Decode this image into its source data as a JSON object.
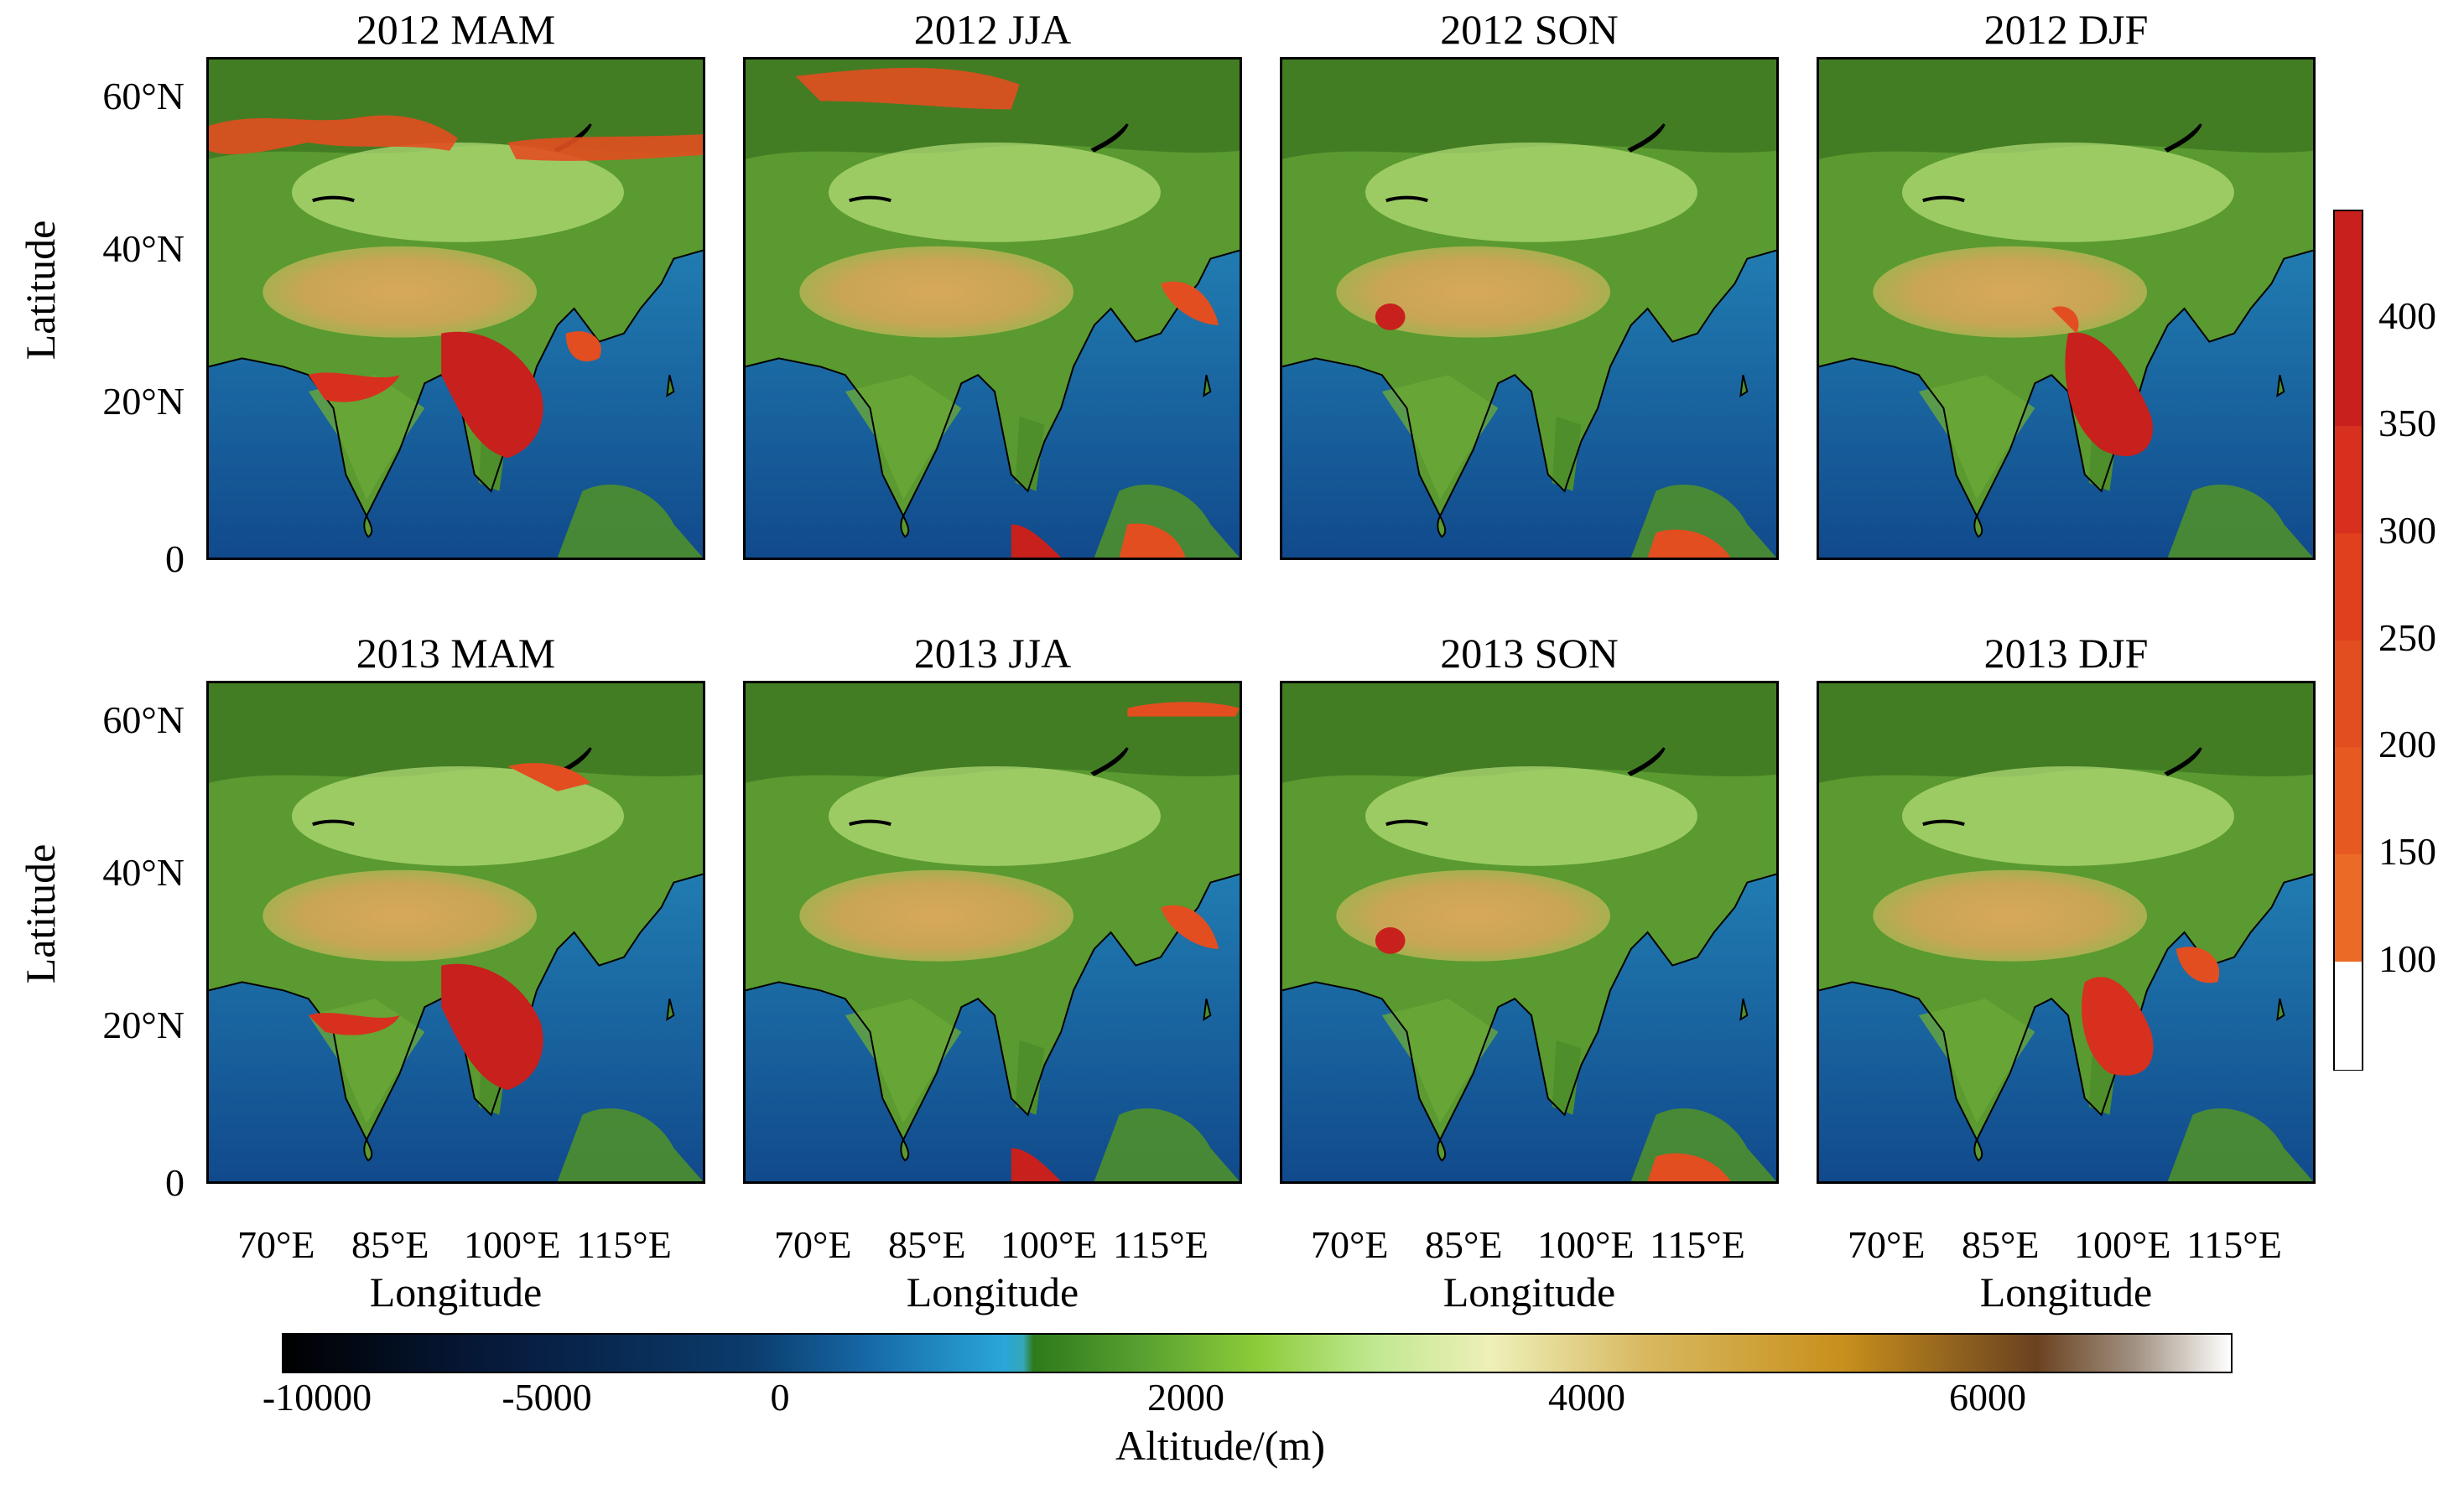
{
  "figure": {
    "panels": [
      {
        "title": "2012 MAM"
      },
      {
        "title": "2012 JJA"
      },
      {
        "title": "2012 SON"
      },
      {
        "title": "2012 DJF"
      },
      {
        "title": "2013 MAM"
      },
      {
        "title": "2013 JJA"
      },
      {
        "title": "2013 SON"
      },
      {
        "title": "2013 DJF"
      }
    ],
    "lat_ticks": [
      "60°N",
      "40°N",
      "20°N",
      "0"
    ],
    "lon_ticks": [
      "70°E",
      "85°E",
      "100°E",
      "115°E"
    ],
    "ylabel": "Latitude",
    "xlabel": "Longitude"
  },
  "right_colorbar": {
    "ticks": [
      "400",
      "350",
      "300",
      "250",
      "200",
      "150",
      "100"
    ],
    "colors": [
      "#c8201c",
      "#d8301e",
      "#e0401e",
      "#e24e20",
      "#e65a22",
      "#ea6a26",
      "#ffffff"
    ]
  },
  "altitude_colorbar": {
    "ticks": [
      "-10000",
      "-5000",
      "0",
      "2000",
      "4000",
      "6000"
    ],
    "label": "Altitude/(m)"
  },
  "colors": {
    "ocean": "#2a86b6",
    "land": "#4e8f2c",
    "plateau": "#c9a556",
    "hotspot": "#c8201c"
  }
}
